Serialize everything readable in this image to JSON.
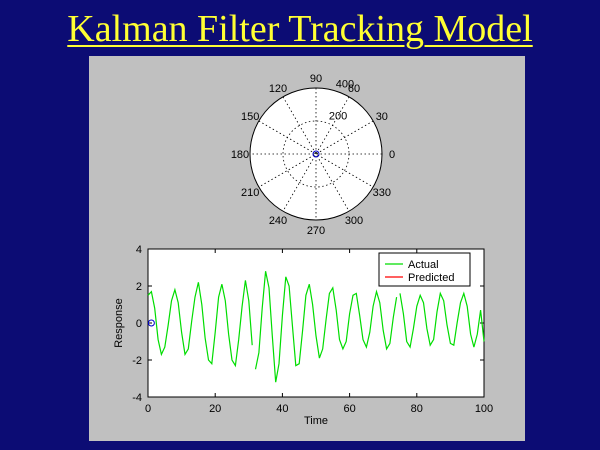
{
  "slide": {
    "title": "Kalman Filter Tracking Model"
  },
  "chart_data": [
    {
      "type": "polar",
      "angle_tick_labels": [
        "90",
        "60",
        "30",
        "0",
        "330",
        "300",
        "270",
        "240",
        "210",
        "180",
        "150",
        "120"
      ],
      "angle_ticks_deg": [
        90,
        60,
        30,
        0,
        330,
        300,
        270,
        240,
        210,
        180,
        150,
        120
      ],
      "radius_tick_labels": [
        "200",
        "400"
      ],
      "radius_ticks": [
        200,
        400
      ],
      "rlim": [
        0,
        400
      ],
      "grid": true,
      "points": [
        {
          "theta_deg": 0,
          "r": 0
        }
      ]
    },
    {
      "type": "line",
      "title": "",
      "xlabel": "Time",
      "ylabel": "Response",
      "xlim": [
        0,
        100
      ],
      "ylim": [
        -4,
        4
      ],
      "x_ticks": [
        "0",
        "20",
        "40",
        "60",
        "80",
        "100"
      ],
      "y_ticks": [
        "4",
        "2",
        "0",
        "-2",
        "-4"
      ],
      "grid": false,
      "legend_placement": "top-right",
      "series": [
        {
          "name": "Actual",
          "color": "#00dd00",
          "x": [
            0,
            1,
            2,
            3,
            4,
            5,
            6,
            7,
            8,
            9,
            10,
            11,
            12,
            13,
            14,
            15,
            16,
            17,
            18,
            19,
            20,
            21,
            22,
            23,
            24,
            25,
            26,
            27,
            28,
            29,
            30,
            31,
            32,
            33,
            34,
            35,
            36,
            37,
            38,
            39,
            40,
            41,
            42,
            43,
            44,
            45,
            46,
            47,
            48,
            49,
            50,
            51,
            52,
            53,
            54,
            55,
            56,
            57,
            58,
            59,
            60,
            61,
            62,
            63,
            64,
            65,
            66,
            67,
            68,
            69,
            70,
            71,
            72,
            73,
            74,
            75,
            76,
            77,
            78,
            79,
            80,
            81,
            82,
            83,
            84,
            85,
            86,
            87,
            88,
            89,
            90,
            91,
            92,
            93,
            94,
            95,
            96,
            97,
            98,
            99,
            100
          ],
          "y": [
            1.5,
            1.7,
            0.8,
            -0.9,
            -1.7,
            -1.3,
            -0.1,
            1.2,
            1.8,
            1.1,
            -0.5,
            -1.7,
            -1.4,
            0.1,
            1.4,
            2.2,
            1.0,
            -0.8,
            -2.0,
            -2.2,
            -0.5,
            1.4,
            2.1,
            1.2,
            -0.6,
            -2.0,
            -2.3,
            -0.9,
            0.9,
            2.3,
            1.2,
            -1.2,
            -2.5,
            -1.6,
            0.8,
            2.8,
            1.9,
            -0.7,
            -3.2,
            -2.2,
            0.4,
            2.5,
            2.0,
            -0.2,
            -2.3,
            -2.2,
            -0.4,
            1.5,
            2.1,
            1.0,
            -0.7,
            -1.9,
            -1.4,
            0.2,
            1.6,
            1.9,
            0.7,
            -0.9,
            -1.4,
            -1.0,
            0.5,
            1.5,
            1.6,
            0.4,
            -0.9,
            -1.3,
            -0.5,
            0.9,
            1.7,
            1.1,
            -0.4,
            -1.4,
            -1.1,
            0.3,
            1.4,
            1.6,
            0.5,
            -1.0,
            -1.3,
            -0.3,
            0.9,
            1.5,
            1.1,
            -0.3,
            -1.2,
            -0.9,
            0.6,
            1.6,
            1.2,
            -0.1,
            -1.1,
            -1.2,
            0.0,
            1.1,
            1.6,
            0.9,
            -0.6,
            -1.3,
            -0.6,
            0.7,
            -1.0
          ],
          "gaps_after_x": [
            31,
            74
          ]
        },
        {
          "name": "Predicted",
          "color": "#ff0000",
          "x": [],
          "y": []
        }
      ],
      "markers": [
        {
          "x": 1,
          "y": 0,
          "color": "#0000cc",
          "shape": "circle"
        }
      ]
    }
  ]
}
